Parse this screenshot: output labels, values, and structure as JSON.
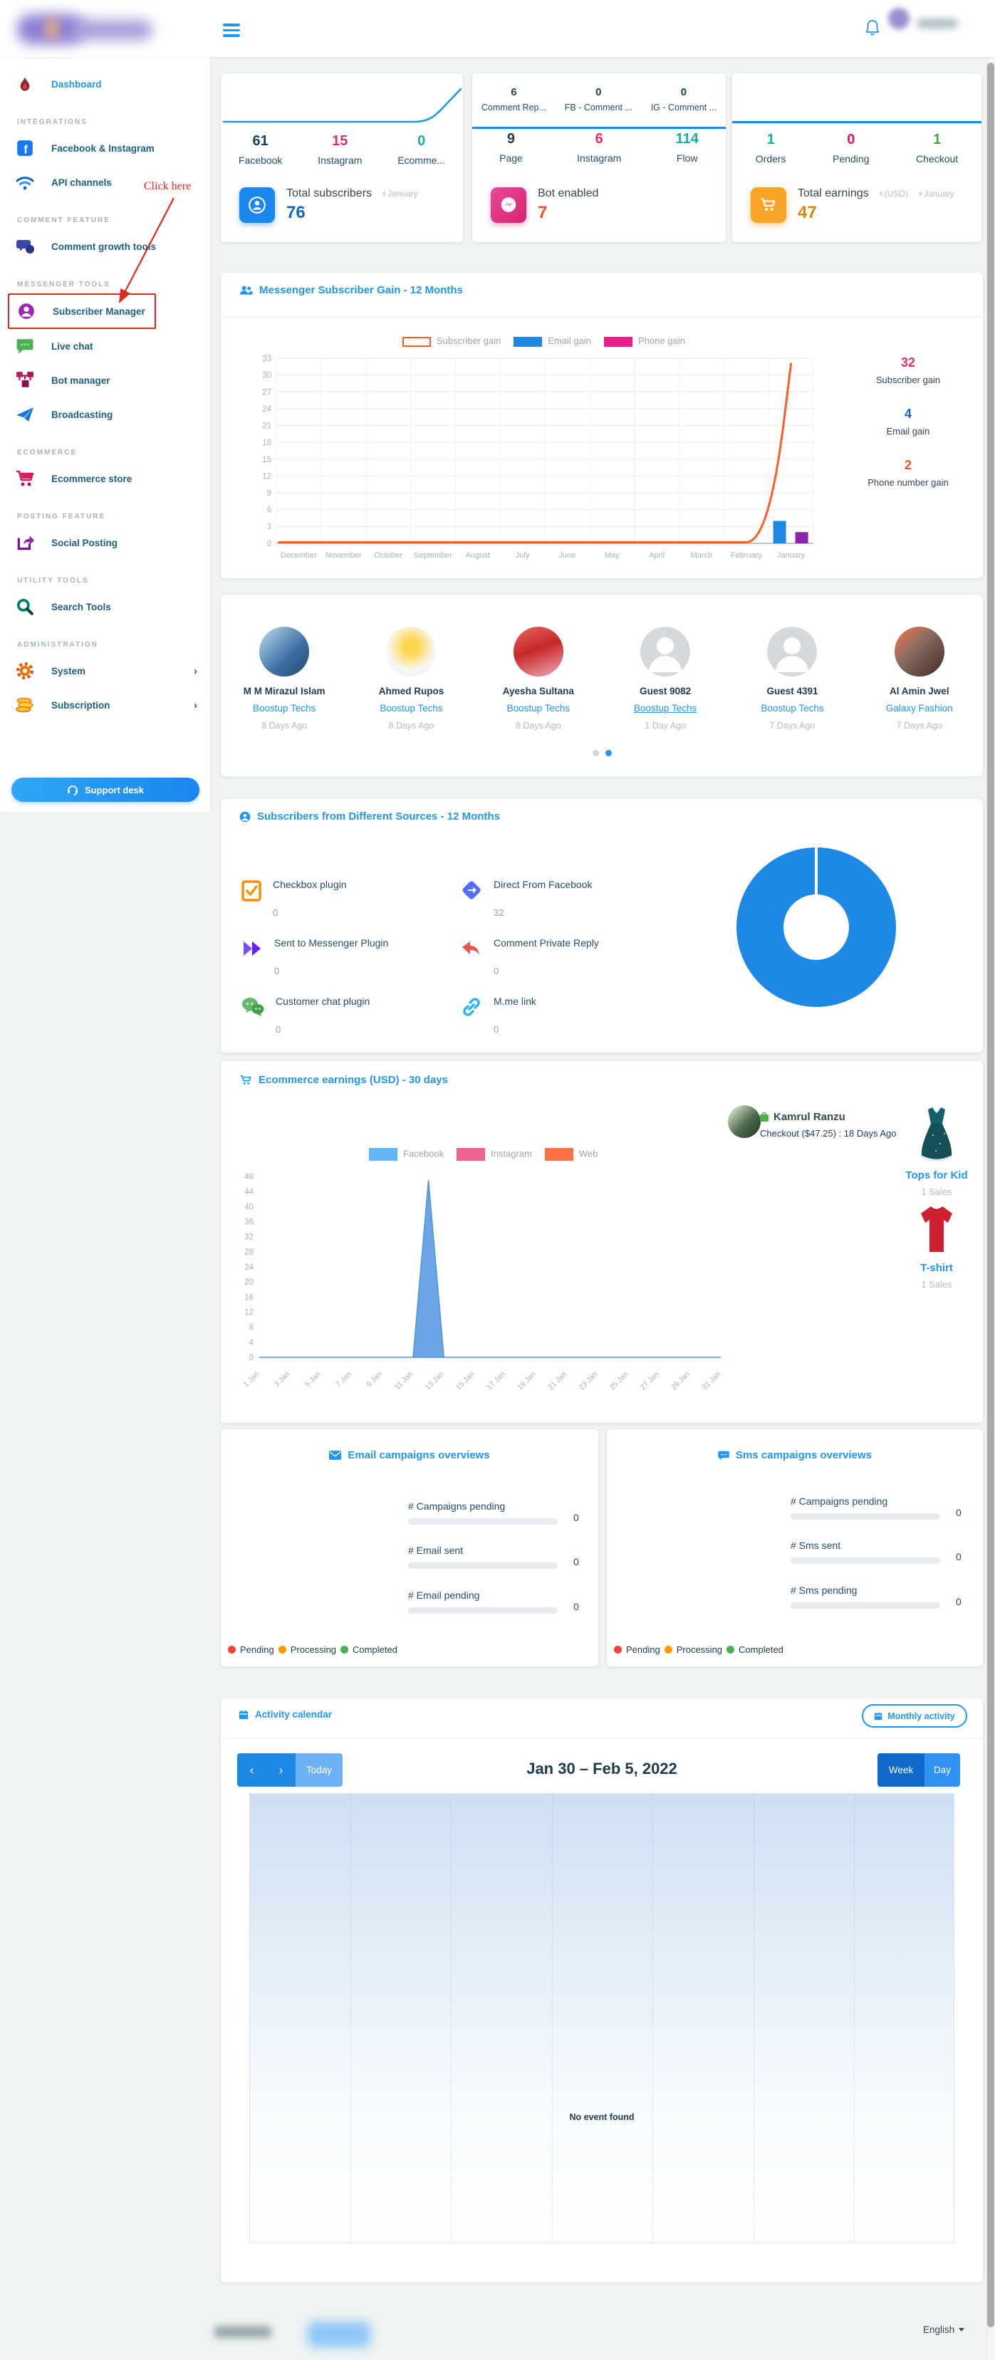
{
  "sidebar": {
    "annotation": "Click here",
    "groups": [
      {
        "items": [
          {
            "label": "Dashboard"
          }
        ]
      },
      {
        "header": "INTEGRATIONS",
        "items": [
          {
            "label": "Facebook & Instagram"
          },
          {
            "label": "API channels"
          }
        ]
      },
      {
        "header": "COMMENT FEATURE",
        "items": [
          {
            "label": "Comment growth tools"
          }
        ]
      },
      {
        "header": "MESSENGER TOOLS",
        "items": [
          {
            "label": "Subscriber Manager"
          },
          {
            "label": "Live chat"
          },
          {
            "label": "Bot manager"
          },
          {
            "label": "Broadcasting"
          }
        ]
      },
      {
        "header": "ECOMMERCE",
        "items": [
          {
            "label": "Ecommerce store"
          }
        ]
      },
      {
        "header": "POSTING FEATURE",
        "items": [
          {
            "label": "Social Posting"
          }
        ]
      },
      {
        "header": "UTILITY TOOLS",
        "items": [
          {
            "label": "Search Tools"
          }
        ]
      },
      {
        "header": "ADMINISTRATION",
        "items": [
          {
            "label": "System"
          },
          {
            "label": "Subscription"
          }
        ]
      }
    ],
    "support_desk": "Support desk"
  },
  "stat_cards": {
    "subscribers": {
      "stats": [
        {
          "value": "61",
          "label": "Facebook"
        },
        {
          "value": "15",
          "label": "Instagram"
        },
        {
          "value": "0",
          "label": "Ecomme..."
        }
      ],
      "title": "Total subscribers",
      "tag": "January",
      "total": "76"
    },
    "bot": {
      "top": [
        {
          "value": "6",
          "label": "Comment Rep..."
        },
        {
          "value": "0",
          "label": "FB - Comment ..."
        },
        {
          "value": "0",
          "label": "IG - Comment ..."
        }
      ],
      "stats": [
        {
          "value": "9",
          "label": "Page"
        },
        {
          "value": "6",
          "label": "Instagram"
        },
        {
          "value": "114",
          "label": "Flow"
        }
      ],
      "title": "Bot enabled",
      "total": "7"
    },
    "earnings": {
      "stats": [
        {
          "value": "1",
          "label": "Orders"
        },
        {
          "value": "0",
          "label": "Pending"
        },
        {
          "value": "1",
          "label": "Checkout"
        }
      ],
      "title": "Total earnings",
      "tag1": "(USD)",
      "tag2": "January",
      "total": "47"
    }
  },
  "gain_section": {
    "title": "Messenger Subscriber Gain - 12 Months",
    "legend": [
      {
        "label": "Subscriber gain"
      },
      {
        "label": "Email gain"
      },
      {
        "label": "Phone gain"
      }
    ],
    "summary": [
      {
        "value": "32",
        "label": "Subscriber gain"
      },
      {
        "value": "4",
        "label": "Email gain"
      },
      {
        "value": "2",
        "label": "Phone number gain"
      }
    ]
  },
  "subscribers_row": {
    "items": [
      {
        "name": "M M Mirazul Islam",
        "page": "Boostup Techs",
        "time": "8 Days Ago"
      },
      {
        "name": "Ahmed Rupos",
        "page": "Boostup Techs",
        "time": "8 Days Ago"
      },
      {
        "name": "Ayesha Sultana",
        "page": "Boostup Techs",
        "time": "8 Days Ago"
      },
      {
        "name": "Guest 9082",
        "page": "Boostup Techs",
        "time": "1 Day Ago"
      },
      {
        "name": "Guest 4391",
        "page": "Boostup Techs",
        "time": "7 Days Ago"
      },
      {
        "name": "Al Amin Jwel",
        "page": "Galaxy Fashion",
        "time": "7 Days Ago"
      }
    ]
  },
  "sources_section": {
    "title": "Subscribers from Different Sources - 12 Months",
    "items": [
      {
        "label": "Checkbox plugin",
        "value": "0"
      },
      {
        "label": "Direct From Facebook",
        "value": "32"
      },
      {
        "label": "Sent to Messenger Plugin",
        "value": "0"
      },
      {
        "label": "Comment Private Reply",
        "value": "0"
      },
      {
        "label": "Customer chat plugin",
        "value": "0"
      },
      {
        "label": "M.me link",
        "value": "0"
      }
    ]
  },
  "ecom_section": {
    "title": "Ecommerce earnings (USD) - 30 days",
    "customer": {
      "name": "Kamrul Ranzu",
      "detail": "Checkout ($47.25) : 18 Days Ago"
    },
    "products": [
      {
        "name": "Tops for Kid",
        "sales": "1 Sales"
      },
      {
        "name": "T-shirt",
        "sales": "1 Sales"
      }
    ]
  },
  "campaigns": {
    "email": {
      "title": "Email campaigns overviews",
      "rows": [
        {
          "label": "# Campaigns pending",
          "value": "0"
        },
        {
          "label": "# Email sent",
          "value": "0"
        },
        {
          "label": "# Email pending",
          "value": "0"
        }
      ]
    },
    "sms": {
      "title": "Sms campaigns overviews",
      "rows": [
        {
          "label": "# Campaigns pending",
          "value": "0"
        },
        {
          "label": "# Sms sent",
          "value": "0"
        },
        {
          "label": "# Sms pending",
          "value": "0"
        }
      ]
    },
    "legend": [
      {
        "label": "Pending",
        "color": "#f44336"
      },
      {
        "label": "Processing",
        "color": "#ff9800"
      },
      {
        "label": "Completed",
        "color": "#4caf50"
      }
    ]
  },
  "calendar": {
    "title": "Activity calendar",
    "monthly_button": "Monthly activity",
    "prev": "‹",
    "next": "›",
    "today": "Today",
    "range": "Jan 30 – Feb 5, 2022",
    "week": "Week",
    "day": "Day",
    "empty": "No event found"
  },
  "footer": {
    "language": "English"
  },
  "chart_data": [
    {
      "id": "messenger_gain",
      "type": "line+bar",
      "title": "Messenger Subscriber Gain - 12 Months",
      "categories": [
        "December",
        "November",
        "October",
        "September",
        "August",
        "July",
        "June",
        "May",
        "April",
        "March",
        "February",
        "January"
      ],
      "series": [
        {
          "name": "Subscriber gain",
          "type": "line",
          "color": "#fb5d24",
          "values": [
            0,
            0,
            0,
            0,
            0,
            0,
            0,
            0,
            0,
            0,
            0,
            32
          ]
        },
        {
          "name": "Email gain",
          "type": "bar",
          "color": "#1e88e5",
          "values": [
            0,
            0,
            0,
            0,
            0,
            0,
            0,
            0,
            0,
            0,
            0,
            4
          ]
        },
        {
          "name": "Phone gain",
          "type": "bar",
          "color": "#8e24aa",
          "values": [
            0,
            0,
            0,
            0,
            0,
            0,
            0,
            0,
            0,
            0,
            0,
            2
          ]
        }
      ],
      "ylim": [
        0,
        33
      ],
      "ytick_step": 3,
      "grid": true,
      "legend_position": "top"
    },
    {
      "id": "ecommerce_earnings",
      "type": "area",
      "title": "Ecommerce earnings (USD) - 30 days",
      "xticks": [
        "1 Jan",
        "3 Jan",
        "5 Jan",
        "7 Jan",
        "9 Jan",
        "11 Jan",
        "13 Jan",
        "15 Jan",
        "17 Jan",
        "19 Jan",
        "21 Jan",
        "23 Jan",
        "25 Jan",
        "27 Jan",
        "29 Jan",
        "31 Jan"
      ],
      "series": [
        {
          "name": "Facebook",
          "color": "#64b5f6",
          "values": [
            0,
            0,
            0,
            0,
            0,
            0,
            0,
            0,
            0,
            0,
            0,
            47,
            0,
            0,
            0,
            0,
            0,
            0,
            0,
            0,
            0,
            0,
            0,
            0,
            0,
            0,
            0,
            0,
            0,
            0,
            0
          ]
        },
        {
          "name": "Instagram",
          "color": "#f06292",
          "values": [
            0,
            0,
            0,
            0,
            0,
            0,
            0,
            0,
            0,
            0,
            0,
            0,
            0,
            0,
            0,
            0,
            0,
            0,
            0,
            0,
            0,
            0,
            0,
            0,
            0,
            0,
            0,
            0,
            0,
            0,
            0
          ]
        },
        {
          "name": "Web",
          "color": "#ff7043",
          "values": [
            0,
            0,
            0,
            0,
            0,
            0,
            0,
            0,
            0,
            0,
            0,
            0,
            0,
            0,
            0,
            0,
            0,
            0,
            0,
            0,
            0,
            0,
            0,
            0,
            0,
            0,
            0,
            0,
            0,
            0,
            0
          ]
        }
      ],
      "ylim": [
        0,
        48
      ],
      "ytick_step": 4,
      "grid": false,
      "legend_position": "top"
    },
    {
      "id": "subscriber_sources_donut",
      "type": "pie",
      "categories": [
        "Direct From Facebook",
        "Checkbox plugin",
        "Sent to Messenger Plugin",
        "Comment Private Reply",
        "Customer chat plugin",
        "M.me link"
      ],
      "values": [
        32,
        0,
        0,
        0,
        0,
        0
      ],
      "color": "#1e88e5"
    }
  ]
}
